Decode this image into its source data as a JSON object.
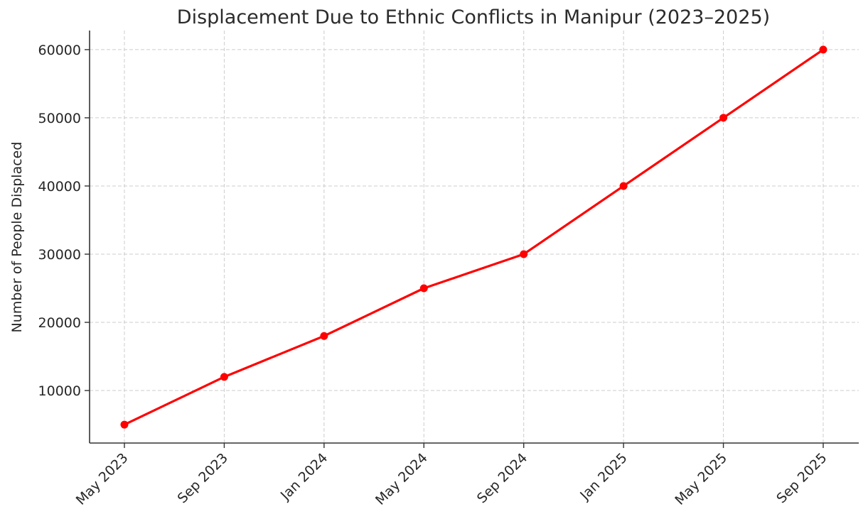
{
  "chart_data": {
    "type": "line",
    "title": "Displacement Due to Ethnic Conflicts in Manipur (2023–2025)",
    "xlabel": "",
    "ylabel": "Number of People Displaced",
    "categories": [
      "May 2023",
      "Sep 2023",
      "Jan 2024",
      "May 2024",
      "Sep 2024",
      "Jan 2025",
      "May 2025",
      "Sep 2025"
    ],
    "series": [
      {
        "name": "People Displaced",
        "color": "#ff0000",
        "marker": "circle",
        "values": [
          5000,
          12000,
          18000,
          25000,
          30000,
          40000,
          50000,
          60000
        ]
      }
    ],
    "yticks": [
      10000,
      20000,
      30000,
      40000,
      50000,
      60000
    ],
    "ylim": [
      2300,
      62800
    ],
    "grid": true,
    "grid_style": "dashed",
    "legend": null,
    "xtick_rotation": 45
  }
}
